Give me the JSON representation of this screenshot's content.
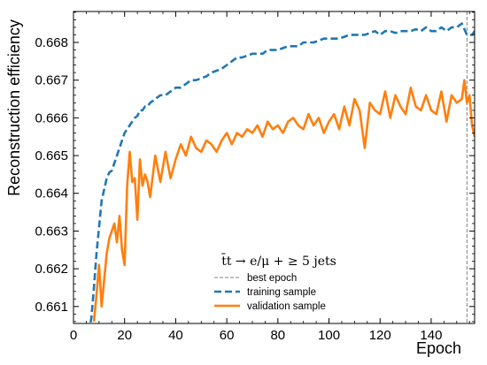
{
  "chart_data": {
    "type": "line",
    "xlabel": "Epoch",
    "ylabel": "Reconstruction efficiency",
    "xlim": [
      0,
      157
    ],
    "ylim": [
      0.66055,
      0.66882
    ],
    "xticks": [
      0,
      20,
      40,
      60,
      80,
      100,
      120,
      140
    ],
    "yticks": [
      0.661,
      0.662,
      0.663,
      0.664,
      0.665,
      0.666,
      0.667,
      0.668
    ],
    "ytick_labels": [
      "0.661",
      "0.662",
      "0.663",
      "0.664",
      "0.665",
      "0.666",
      "0.667",
      "0.668"
    ],
    "xtick_labels": [
      "0",
      "20",
      "40",
      "60",
      "80",
      "100",
      "120",
      "140"
    ],
    "grid": false,
    "legend_placement": "lower-center",
    "legend_title": "t̄t → e/μ + ≥ 5 jets",
    "best_epoch": {
      "label": "best epoch",
      "x": 154,
      "color": "#808080",
      "style": "dashed"
    },
    "series": [
      {
        "name": "training sample",
        "color": "#1f77b4",
        "style": "dashed",
        "x": [
          6,
          7,
          8,
          9,
          10,
          11,
          12,
          13,
          14,
          15,
          16,
          17,
          18,
          19,
          20,
          21,
          22,
          23,
          24,
          25,
          26,
          27,
          28,
          29,
          30,
          32,
          34,
          36,
          38,
          40,
          42,
          44,
          46,
          48,
          50,
          52,
          54,
          56,
          58,
          60,
          62,
          64,
          66,
          68,
          70,
          72,
          74,
          76,
          78,
          80,
          82,
          84,
          86,
          88,
          90,
          92,
          94,
          96,
          98,
          100,
          102,
          104,
          106,
          108,
          110,
          112,
          114,
          116,
          118,
          120,
          122,
          124,
          126,
          128,
          130,
          132,
          134,
          136,
          138,
          140,
          142,
          144,
          146,
          148,
          150,
          152,
          154,
          156,
          157
        ],
        "y": [
          0.6603,
          0.6607,
          0.6615,
          0.6624,
          0.6631,
          0.6638,
          0.6641,
          0.6644,
          0.66455,
          0.6646,
          0.6648,
          0.665,
          0.6652,
          0.6654,
          0.6656,
          0.6657,
          0.6658,
          0.6659,
          0.666,
          0.66605,
          0.6662,
          0.6662,
          0.6663,
          0.6663,
          0.6664,
          0.6665,
          0.6666,
          0.6666,
          0.6667,
          0.6668,
          0.6668,
          0.6669,
          0.667,
          0.667,
          0.66705,
          0.6671,
          0.6672,
          0.66725,
          0.6673,
          0.6674,
          0.6675,
          0.6676,
          0.6676,
          0.66765,
          0.6677,
          0.6677,
          0.6677,
          0.6678,
          0.6678,
          0.6678,
          0.66785,
          0.6679,
          0.6679,
          0.6679,
          0.668,
          0.668,
          0.668,
          0.66805,
          0.6681,
          0.6681,
          0.6681,
          0.6681,
          0.66815,
          0.6682,
          0.6682,
          0.6682,
          0.6682,
          0.66825,
          0.6683,
          0.6682,
          0.6683,
          0.6683,
          0.66825,
          0.6683,
          0.6683,
          0.6683,
          0.66835,
          0.6683,
          0.6684,
          0.6683,
          0.6683,
          0.6684,
          0.6683,
          0.6684,
          0.6684,
          0.6685,
          0.6682,
          0.6682,
          0.6683
        ]
      },
      {
        "name": "validation sample",
        "color": "#ff7f0e",
        "style": "solid",
        "x": [
          8,
          9,
          10,
          11,
          12,
          13,
          14,
          15,
          16,
          17,
          18,
          19,
          20,
          21,
          22,
          23,
          24,
          25,
          26,
          27,
          28,
          29,
          30,
          32,
          34,
          36,
          38,
          40,
          42,
          44,
          46,
          48,
          50,
          52,
          54,
          56,
          58,
          60,
          62,
          64,
          66,
          68,
          70,
          72,
          74,
          76,
          78,
          80,
          82,
          84,
          86,
          88,
          90,
          92,
          94,
          96,
          98,
          100,
          102,
          104,
          106,
          108,
          110,
          112,
          114,
          116,
          118,
          120,
          122,
          124,
          126,
          128,
          130,
          132,
          134,
          136,
          138,
          140,
          142,
          144,
          146,
          148,
          150,
          152,
          153,
          154,
          155,
          156,
          157
        ],
        "y": [
          0.6606,
          0.6613,
          0.6621,
          0.661,
          0.6617,
          0.6624,
          0.6628,
          0.663,
          0.6632,
          0.6627,
          0.6634,
          0.6625,
          0.6621,
          0.6642,
          0.6651,
          0.6643,
          0.6644,
          0.6633,
          0.6649,
          0.6642,
          0.6645,
          0.6643,
          0.6639,
          0.665,
          0.6643,
          0.6651,
          0.6644,
          0.6649,
          0.6653,
          0.665,
          0.6655,
          0.6652,
          0.6651,
          0.6654,
          0.6653,
          0.6651,
          0.6654,
          0.6656,
          0.6653,
          0.6656,
          0.6655,
          0.6657,
          0.6656,
          0.6658,
          0.6655,
          0.6659,
          0.6657,
          0.6658,
          0.6656,
          0.6659,
          0.666,
          0.6658,
          0.6657,
          0.6661,
          0.6658,
          0.666,
          0.6656,
          0.6659,
          0.6661,
          0.6657,
          0.6663,
          0.6658,
          0.6665,
          0.6662,
          0.6652,
          0.6664,
          0.6662,
          0.6661,
          0.6667,
          0.666,
          0.6666,
          0.6663,
          0.6661,
          0.6668,
          0.6663,
          0.6662,
          0.6666,
          0.6662,
          0.6661,
          0.6667,
          0.6659,
          0.6666,
          0.6664,
          0.6665,
          0.667,
          0.6664,
          0.6666,
          0.6658,
          0.6655
        ]
      }
    ]
  }
}
